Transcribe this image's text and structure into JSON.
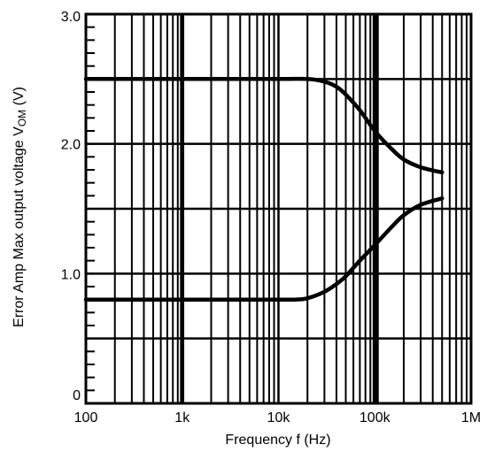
{
  "chart_data": {
    "type": "line",
    "xlabel": "Frequency f (Hz)",
    "ylabel": "Error Amp Max output voltage VOM (V)",
    "ylabel_parts": {
      "main": "Error Amp Max output voltage V",
      "subscript": "OM",
      "unit": " (V)"
    },
    "x_scale": "log",
    "xlim": [
      100,
      1000000
    ],
    "ylim": [
      0,
      3.0
    ],
    "x_ticks": [
      {
        "value": 100,
        "label": "100"
      },
      {
        "value": 1000,
        "label": "1k"
      },
      {
        "value": 10000,
        "label": "10k"
      },
      {
        "value": 100000,
        "label": "100k"
      },
      {
        "value": 1000000,
        "label": "1M"
      }
    ],
    "y_ticks": [
      {
        "value": 0,
        "label": "0"
      },
      {
        "value": 1.0,
        "label": "1.0"
      },
      {
        "value": 2.0,
        "label": "2.0"
      },
      {
        "value": 3.0,
        "label": "3.0"
      }
    ],
    "y_gridlines": [
      0.5,
      1.0,
      1.5,
      2.0,
      2.5
    ],
    "grid": true,
    "series": [
      {
        "x": [
          100,
          1000,
          10000,
          20000,
          30000,
          40000,
          50000,
          70000,
          100000,
          150000,
          200000,
          300000,
          500000
        ],
        "y": [
          2.5,
          2.5,
          2.5,
          2.5,
          2.48,
          2.44,
          2.38,
          2.26,
          2.1,
          1.96,
          1.88,
          1.82,
          1.78
        ]
      },
      {
        "x": [
          100,
          1000,
          10000,
          15000,
          20000,
          30000,
          40000,
          50000,
          70000,
          100000,
          150000,
          200000,
          300000,
          500000
        ],
        "y": [
          0.8,
          0.8,
          0.8,
          0.8,
          0.81,
          0.86,
          0.92,
          0.98,
          1.1,
          1.22,
          1.36,
          1.45,
          1.53,
          1.58
        ]
      }
    ]
  }
}
